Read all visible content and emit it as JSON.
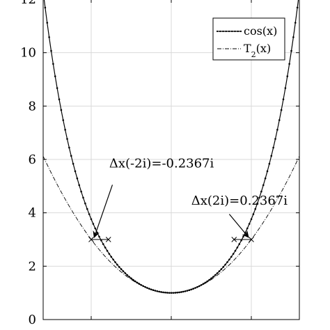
{
  "chart_data": {
    "type": "line",
    "title": "",
    "xlabel": "",
    "ylabel": "",
    "xlim": [
      -3.2,
      3.2
    ],
    "ylim": [
      0,
      12
    ],
    "yticks": [
      0,
      2,
      4,
      6,
      8,
      10,
      12
    ],
    "ytick_labels": [
      "0",
      "2",
      "4",
      "6",
      "8",
      "10",
      "12"
    ],
    "xticks": [
      -2,
      0,
      2
    ],
    "grid": true,
    "legend_position": "top-right",
    "series": [
      {
        "name": "cos(x)",
        "legend_label": "cos(x)",
        "style": "solid-dotted-markers",
        "function": "cosh",
        "x_range": [
          -3.2,
          3.2
        ],
        "points": [
          {
            "x": -3.2,
            "y": 12.28
          },
          {
            "x": -3.0,
            "y": 10.07
          },
          {
            "x": -2.5,
            "y": 6.13
          },
          {
            "x": -2.0,
            "y": 3.76
          },
          {
            "x": -1.5,
            "y": 2.35
          },
          {
            "x": -1.0,
            "y": 1.54
          },
          {
            "x": -0.5,
            "y": 1.13
          },
          {
            "x": 0.0,
            "y": 1.0
          },
          {
            "x": 0.5,
            "y": 1.13
          },
          {
            "x": 1.0,
            "y": 1.54
          },
          {
            "x": 1.5,
            "y": 2.35
          },
          {
            "x": 2.0,
            "y": 3.76
          },
          {
            "x": 2.5,
            "y": 6.13
          },
          {
            "x": 3.0,
            "y": 10.07
          },
          {
            "x": 3.2,
            "y": 12.28
          }
        ]
      },
      {
        "name": "T2(x)",
        "legend_label": "T",
        "legend_subscript": "2",
        "legend_suffix": "(x)",
        "style": "dash-dot",
        "function": "1+x^2/2",
        "x_range": [
          -3.2,
          3.2
        ],
        "points": [
          {
            "x": -3.2,
            "y": 6.12
          },
          {
            "x": -2.0,
            "y": 3.0
          },
          {
            "x": 0.0,
            "y": 1.0
          },
          {
            "x": 2.0,
            "y": 3.0
          },
          {
            "x": 3.2,
            "y": 6.12
          }
        ]
      }
    ],
    "crosses": [
      {
        "x": -2.0,
        "y": 3.0
      },
      {
        "x": -1.57,
        "y": 3.0
      },
      {
        "x": 1.57,
        "y": 3.0
      },
      {
        "x": 2.0,
        "y": 3.0
      }
    ],
    "annotations": [
      {
        "text": "Δx(-2i)=-0.2367i",
        "text_x": -1.55,
        "text_y": 5.7,
        "arrow_to_x": -1.92,
        "arrow_to_y": 3.1,
        "arrow_from_x": -1.47,
        "arrow_from_y": 5.05
      },
      {
        "text": "Δx(2i)=0.2367i",
        "text_x": 0.5,
        "text_y": 4.3,
        "arrow_to_x": 1.92,
        "arrow_to_y": 3.1,
        "arrow_from_x": 1.45,
        "arrow_from_y": 3.95
      }
    ]
  }
}
